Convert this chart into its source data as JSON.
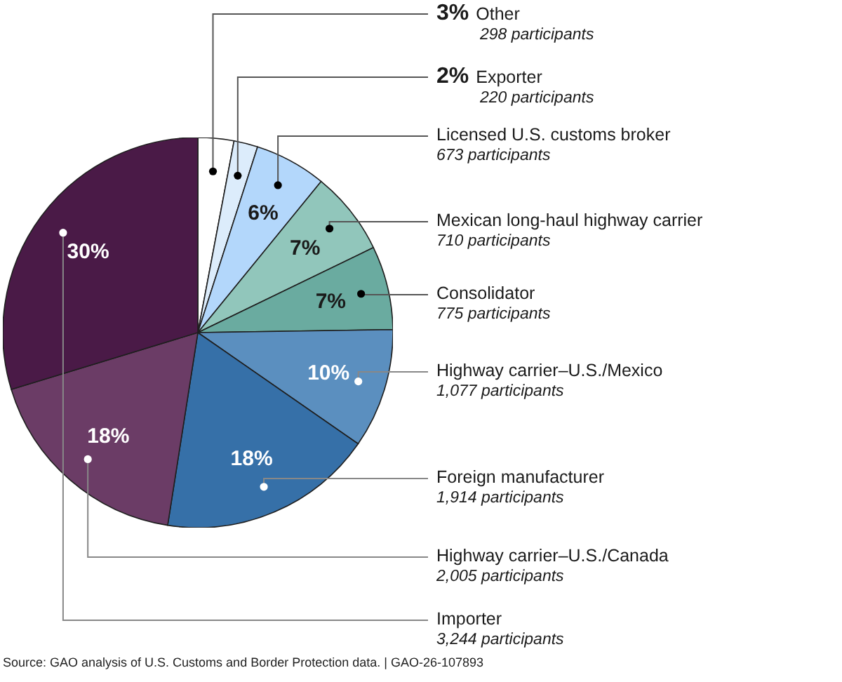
{
  "chart_data": {
    "type": "pie",
    "categories": [
      "Other",
      "Exporter",
      "Licensed U.S. customs broker",
      "Mexican long-haul highway carrier",
      "Consolidator",
      "Highway carrier–U.S./Mexico",
      "Foreign manufacturer",
      "Highway carrier–U.S./Canada",
      "Importer"
    ],
    "values": [
      3,
      2,
      6,
      7,
      7,
      10,
      18,
      18,
      30
    ],
    "value_labels": [
      "3%",
      "2%",
      "6%",
      "7%",
      "7%",
      "10%",
      "18%",
      "18%",
      "30%"
    ],
    "colors": [
      "#ffffff",
      "#dcecfb",
      "#b3d7fb",
      "#91c6bb",
      "#6aaba0",
      "#5b8fbf",
      "#3670a8",
      "#6b3c66",
      "#4a1a47"
    ],
    "annotations": [
      "298 participants",
      "220 participants",
      "673 participants",
      "710 participants",
      "775 participants",
      "1,077 participants",
      "1,914 participants",
      "2,005 participants",
      "3,244 participants",
      "Source: GAO analysis of U.S. Customs and Border Protection data.  |  GAO-26-107893"
    ]
  }
}
